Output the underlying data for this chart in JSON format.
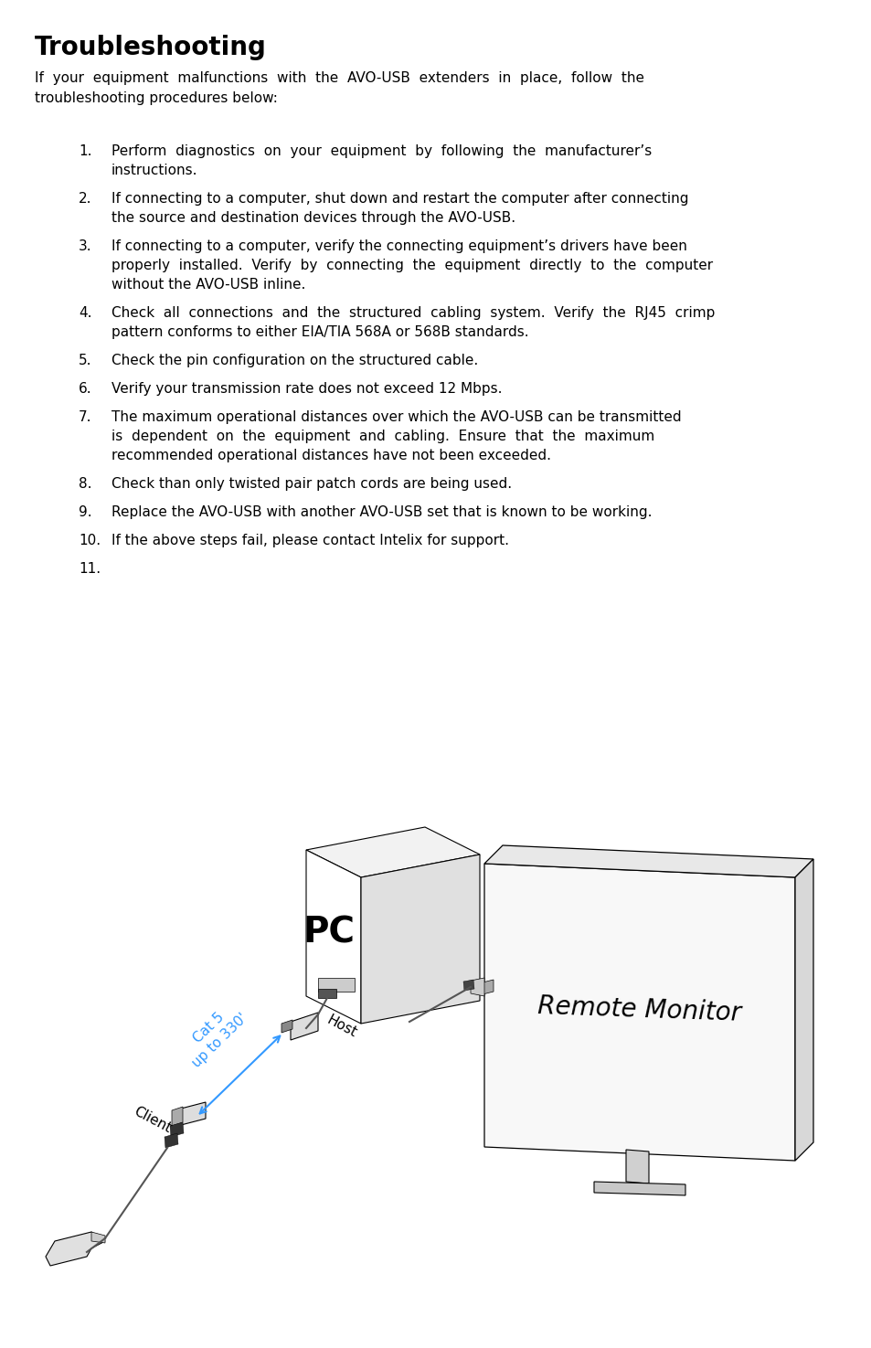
{
  "title": "Troubleshooting",
  "intro": "If your equipment malfunctions with the AVO-USB extenders in place, follow the troubleshooting procedures below:",
  "item_texts": [
    "Perform  diagnostics  on  your  equipment  by  following  the  manufacturer’s instructions.",
    "If connecting to a computer, shut down and restart the computer after connecting the source and destination devices through the AVO-USB.",
    "If connecting to a computer, verify the connecting equipment’s drivers have been properly  installed.  Verify  by  connecting  the  equipment  directly  to  the  computer without the AVO-USB inline.",
    "Check  all  connections  and  the  structured  cabling  system.  Verify  the  RJ45  crimp pattern conforms to either EIA/TIA 568A or 568B standards.",
    "Check the pin configuration on the structured cable.",
    "Verify your transmission rate does not exceed 12 Mbps.",
    "The maximum operational distances over which the AVO-USB can be transmitted is  dependent  on  the  equipment  and  cabling.  Ensure  that  the  maximum recommended operational distances have not been exceeded.",
    "Check than only twisted pair patch cords are being used.",
    "Replace the AVO-USB with another AVO-USB set that is known to be working.",
    "If the above steps fail, please contact Intelix for support.",
    ""
  ],
  "item_lines": [
    2,
    2,
    3,
    2,
    1,
    1,
    3,
    1,
    1,
    1,
    1
  ],
  "background_color": "#ffffff",
  "text_color": "#000000",
  "blue_color": "#3399ff"
}
